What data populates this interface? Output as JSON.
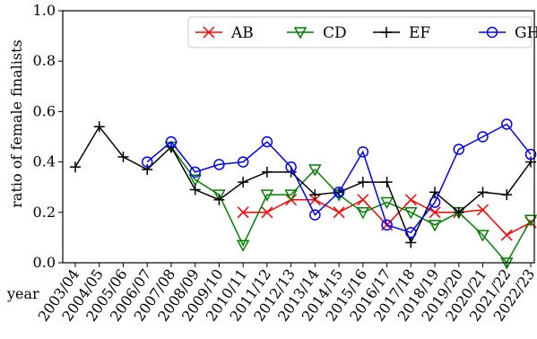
{
  "chart_data": {
    "type": "line",
    "title": "",
    "xlabel": "year",
    "ylabel": "ratio of female finalists",
    "ylim": [
      0.0,
      1.0
    ],
    "yticks": [
      "0.0",
      "0.2",
      "0.4",
      "0.6",
      "0.8",
      "1.0"
    ],
    "categories": [
      "2003/04",
      "2004/05",
      "2005/06",
      "2006/07",
      "2007/08",
      "2008/09",
      "2009/10",
      "2010/11",
      "2011/12",
      "2012/13",
      "2013/14",
      "2014/15",
      "2015/16",
      "2016/17",
      "2017/18",
      "2018/19",
      "2019/20",
      "2020/21",
      "2021/22",
      "2022/23"
    ],
    "grid": false,
    "legend_position": "top-right",
    "series": [
      {
        "name": "AB",
        "color": "#ff0000",
        "marker": "x",
        "values": [
          null,
          null,
          null,
          null,
          null,
          null,
          null,
          0.2,
          0.2,
          0.25,
          0.25,
          0.2,
          0.25,
          0.15,
          0.25,
          0.2,
          0.2,
          0.21,
          0.11,
          0.16
        ]
      },
      {
        "name": "CD",
        "color": "#008000",
        "marker": "triangle-down",
        "values": [
          null,
          null,
          null,
          null,
          0.46,
          0.33,
          0.27,
          0.07,
          0.27,
          0.27,
          0.37,
          0.27,
          0.2,
          0.24,
          0.2,
          0.15,
          0.2,
          0.11,
          0.0,
          0.17
        ]
      },
      {
        "name": "EF",
        "color": "#000000",
        "marker": "plus",
        "values": [
          0.38,
          0.54,
          0.42,
          0.37,
          0.46,
          0.29,
          0.25,
          0.32,
          0.36,
          0.36,
          0.27,
          0.28,
          0.32,
          0.32,
          0.08,
          0.28,
          0.2,
          0.28,
          0.27,
          0.4
        ]
      },
      {
        "name": "GH",
        "color": "#0000ff",
        "marker": "circle",
        "values": [
          null,
          null,
          null,
          0.4,
          0.48,
          0.36,
          0.39,
          0.4,
          0.48,
          0.38,
          0.19,
          0.28,
          0.44,
          0.15,
          0.12,
          0.24,
          0.45,
          0.5,
          0.55,
          0.43
        ]
      }
    ]
  }
}
